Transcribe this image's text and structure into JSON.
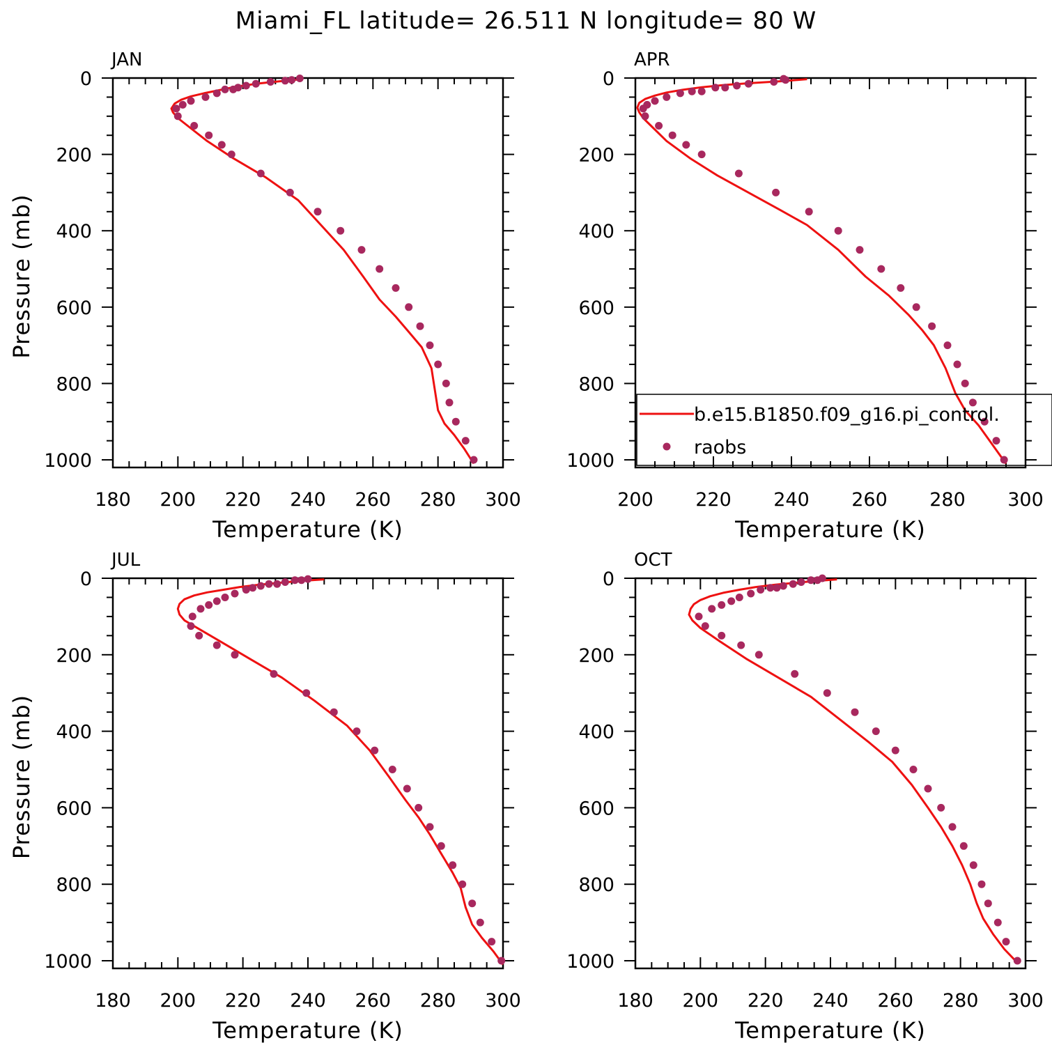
{
  "figure": {
    "title": "Miami_FL  latitude= 26.511 N longitude= 80 W",
    "colors": {
      "model_line": "#ee1111",
      "obs_marker": "#a8285e",
      "axis": "#000000"
    }
  },
  "legend": {
    "panel": "APR",
    "entries": [
      {
        "label": "b.e15.B1850.f09_g16.pi_control.",
        "style": "line"
      },
      {
        "label": "raobs",
        "style": "marker"
      }
    ]
  },
  "chart_data": [
    {
      "panel": "JAN",
      "type": "line",
      "xlabel": "Temperature (K)",
      "ylabel": "Pressure (mb)",
      "xlim": [
        180,
        300
      ],
      "xticks": [
        180,
        200,
        220,
        240,
        260,
        280,
        300
      ],
      "ylim": [
        0,
        1020
      ],
      "yticks": [
        0,
        200,
        400,
        600,
        800,
        1000
      ],
      "y_inverted": true,
      "series": [
        {
          "name": "b.e15.B1850.f09_g16.pi_control.",
          "style": "line",
          "x": [
            238,
            232,
            225,
            220,
            216,
            212,
            208,
            204,
            201,
            199,
            198,
            198.5,
            200,
            203,
            209,
            217,
            227,
            237,
            244,
            251,
            257,
            262,
            267,
            271,
            275,
            278,
            279,
            280,
            282,
            285,
            288,
            291
          ],
          "y": [
            3,
            8,
            14,
            20,
            26,
            33,
            40,
            48,
            57,
            67,
            80,
            90,
            105,
            125,
            165,
            210,
            260,
            320,
            385,
            450,
            520,
            580,
            625,
            665,
            705,
            760,
            815,
            870,
            905,
            935,
            970,
            1010
          ]
        },
        {
          "name": "raobs",
          "style": "marker",
          "x": [
            237.5,
            235,
            233,
            228.5,
            224,
            221,
            218.5,
            217,
            214.5,
            212,
            208.5,
            204,
            201.5,
            199.5,
            200,
            205,
            209.5,
            213.5,
            216.5,
            225.5,
            234.5,
            243,
            250,
            256.5,
            262,
            267,
            271,
            274.5,
            277.5,
            280,
            282.5,
            283.5,
            285.5,
            288.5,
            291
          ],
          "y": [
            1,
            5,
            7,
            10,
            15,
            20,
            25,
            30,
            30,
            40,
            50,
            60,
            70,
            80,
            100,
            125,
            150,
            175,
            200,
            250,
            300,
            350,
            400,
            450,
            500,
            550,
            600,
            650,
            700,
            750,
            800,
            850,
            900,
            950,
            1000
          ]
        }
      ]
    },
    {
      "panel": "APR",
      "type": "line",
      "xlabel": "Temperature (K)",
      "ylabel": "",
      "xlim": [
        200,
        300
      ],
      "xticks": [
        200,
        220,
        240,
        260,
        280,
        300
      ],
      "ylim": [
        0,
        1020
      ],
      "yticks": [
        0,
        200,
        400,
        600,
        800,
        1000
      ],
      "y_inverted": true,
      "series": [
        {
          "name": "b.e15.B1850.f09_g16.pi_control.",
          "style": "line",
          "x": [
            244,
            238,
            230,
            223,
            217,
            212,
            208,
            205,
            202.5,
            201,
            200.5,
            201,
            202,
            204,
            208,
            214,
            221,
            229,
            237,
            244,
            252,
            259,
            265,
            270,
            273.5,
            276.5,
            279.5,
            282,
            284.5,
            288,
            291.5,
            295
          ],
          "y": [
            3,
            8,
            13,
            18,
            24,
            31,
            38,
            46,
            55,
            65,
            78,
            90,
            105,
            125,
            165,
            210,
            255,
            300,
            345,
            385,
            450,
            520,
            570,
            620,
            660,
            700,
            760,
            825,
            870,
            910,
            960,
            1010
          ]
        },
        {
          "name": "raobs",
          "style": "marker",
          "x": [
            238.5,
            238,
            235.5,
            229,
            226,
            223,
            220.5,
            217,
            214.5,
            211.5,
            208,
            205,
            203,
            202,
            202.5,
            206,
            209.5,
            213,
            217,
            226.5,
            236,
            244.5,
            252,
            257.5,
            263,
            268,
            272,
            276,
            280,
            282.5,
            284.5,
            286.5,
            289.5,
            292.5,
            294.5
          ],
          "y": [
            5,
            2,
            10,
            15,
            20,
            25,
            25,
            35,
            35,
            40,
            50,
            60,
            70,
            80,
            100,
            125,
            150,
            175,
            200,
            250,
            300,
            350,
            400,
            450,
            500,
            550,
            600,
            650,
            700,
            750,
            800,
            850,
            900,
            950,
            1000
          ]
        }
      ]
    },
    {
      "panel": "JUL",
      "type": "line",
      "xlabel": "Temperature (K)",
      "ylabel": "Pressure (mb)",
      "xlim": [
        180,
        300
      ],
      "xticks": [
        180,
        200,
        220,
        240,
        260,
        280,
        300
      ],
      "ylim": [
        0,
        1020
      ],
      "yticks": [
        0,
        200,
        400,
        600,
        800,
        1000
      ],
      "y_inverted": true,
      "series": [
        {
          "name": "b.e15.B1850.f09_g16.pi_control.",
          "style": "line",
          "x": [
            245,
            238,
            231,
            225,
            219,
            214,
            209,
            205,
            202,
            200.5,
            200,
            200.5,
            202,
            206,
            213,
            222,
            232,
            242,
            252,
            259,
            265,
            270,
            274,
            277.5,
            281,
            284.5,
            287,
            288.5,
            290.5,
            293.5,
            297,
            300
          ],
          "y": [
            3,
            7,
            12,
            17,
            23,
            30,
            37,
            45,
            55,
            67,
            80,
            95,
            110,
            130,
            165,
            210,
            260,
            320,
            385,
            450,
            520,
            580,
            625,
            670,
            720,
            770,
            810,
            860,
            905,
            940,
            975,
            1010
          ]
        },
        {
          "name": "raobs",
          "style": "marker",
          "x": [
            240,
            238,
            236,
            233,
            230.5,
            228,
            225.5,
            223,
            221,
            217.5,
            214.5,
            212,
            209.5,
            207,
            204.5,
            204,
            206.5,
            212,
            217.5,
            229.5,
            239.5,
            248,
            255,
            260.5,
            266,
            270.5,
            274,
            277.5,
            281,
            284.5,
            287.5,
            290.5,
            293,
            296.5,
            299.5
          ],
          "y": [
            2,
            5,
            5,
            10,
            15,
            15,
            20,
            25,
            30,
            40,
            50,
            60,
            70,
            80,
            100,
            125,
            150,
            175,
            200,
            250,
            300,
            350,
            400,
            450,
            500,
            550,
            600,
            650,
            700,
            750,
            800,
            850,
            900,
            950,
            1000
          ]
        }
      ]
    },
    {
      "panel": "OCT",
      "type": "line",
      "xlabel": "Temperature (K)",
      "ylabel": "",
      "xlim": [
        180,
        300
      ],
      "xticks": [
        180,
        200,
        220,
        240,
        260,
        280,
        300
      ],
      "ylim": [
        0,
        1020
      ],
      "yticks": [
        0,
        200,
        400,
        600,
        800,
        1000
      ],
      "y_inverted": true,
      "series": [
        {
          "name": "b.e15.B1850.f09_g16.pi_control.",
          "style": "line",
          "x": [
            242,
            236,
            229,
            223,
            217,
            212,
            207,
            203,
            200,
            198,
            197,
            196.5,
            197.5,
            200,
            206,
            214,
            224,
            234,
            243,
            252,
            259,
            265,
            270,
            274,
            277.5,
            280.5,
            283,
            285,
            287,
            290,
            293.5,
            297.5
          ],
          "y": [
            3,
            7,
            12,
            17,
            23,
            30,
            38,
            47,
            57,
            68,
            80,
            95,
            110,
            130,
            165,
            210,
            260,
            310,
            370,
            430,
            480,
            540,
            600,
            650,
            700,
            750,
            800,
            850,
            890,
            930,
            970,
            1005
          ]
        },
        {
          "name": "raobs",
          "style": "marker",
          "x": [
            237.5,
            236,
            234,
            231,
            228.5,
            225.5,
            223.5,
            221.5,
            218.5,
            215.5,
            212,
            209.5,
            206.5,
            203.5,
            199.5,
            201.5,
            206.5,
            212.5,
            218,
            229,
            239,
            247.5,
            254,
            260,
            265.5,
            270,
            274,
            277.5,
            281,
            284,
            286.5,
            288.5,
            291.5,
            294,
            297.5
          ],
          "y": [
            0,
            5,
            5,
            10,
            15,
            20,
            25,
            25,
            30,
            40,
            50,
            60,
            70,
            80,
            100,
            125,
            150,
            175,
            200,
            250,
            300,
            350,
            400,
            450,
            500,
            550,
            600,
            650,
            700,
            750,
            800,
            850,
            900,
            950,
            1000
          ]
        }
      ]
    }
  ]
}
